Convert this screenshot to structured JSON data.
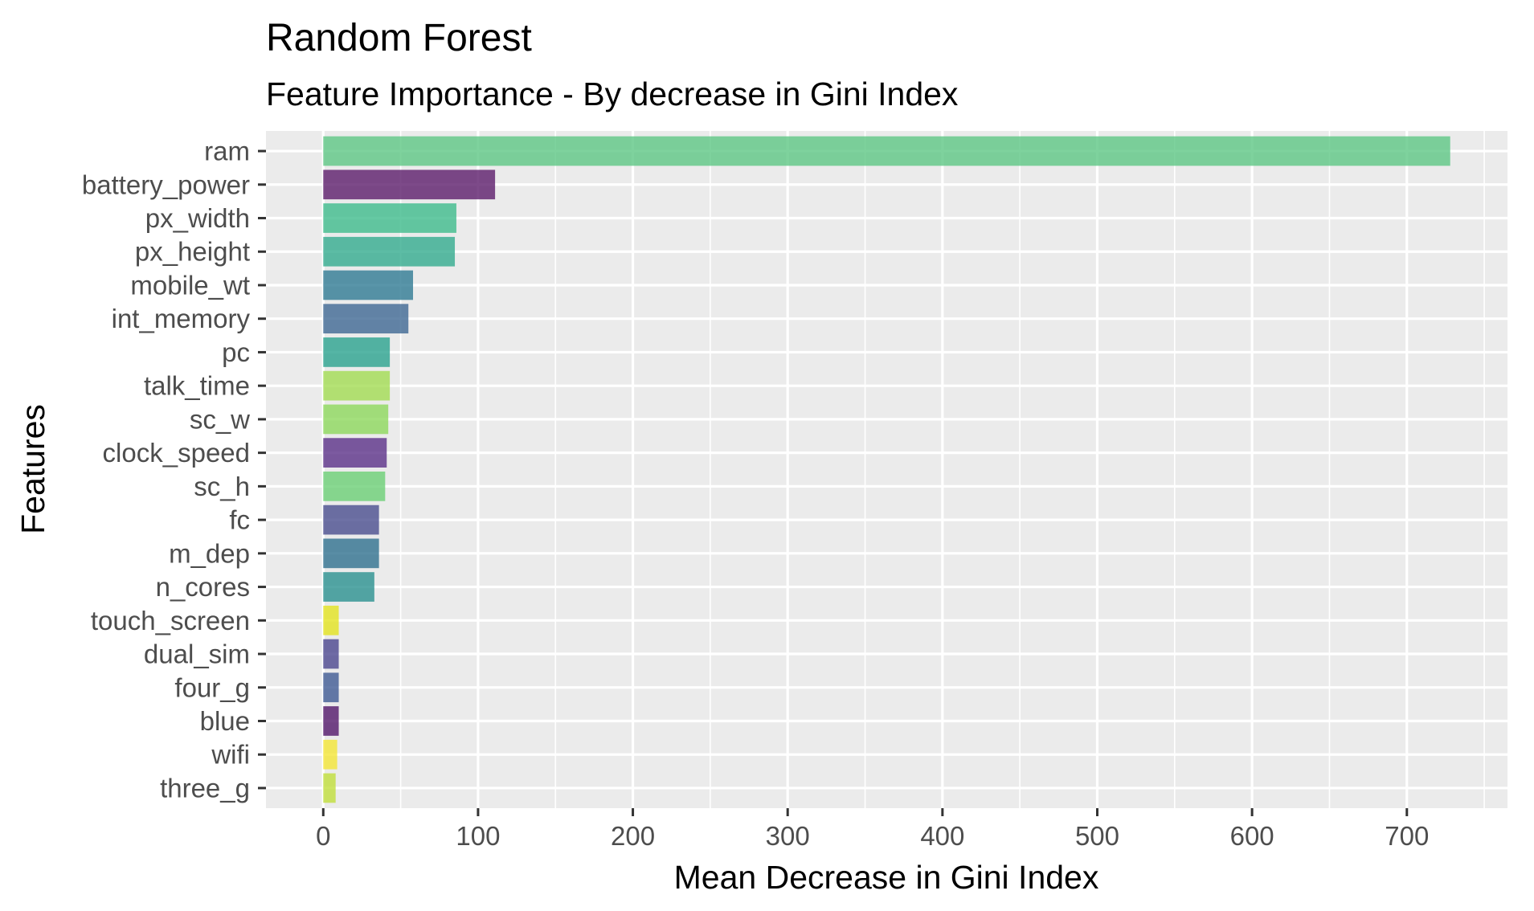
{
  "chart_data": {
    "type": "bar",
    "orientation": "horizontal",
    "title": "Random Forest",
    "subtitle": "Feature Importance - By decrease in Gini Index",
    "xlabel": "Mean Decrease in Gini Index",
    "ylabel": "Features",
    "xlim": [
      -37,
      765
    ],
    "xticks": [
      0,
      100,
      200,
      300,
      400,
      500,
      600,
      700
    ],
    "grid": true,
    "legend": "none",
    "panel_background": "#ebebeb",
    "gridline_color": "#ffffff",
    "bars": [
      {
        "label": "ram",
        "value": 728,
        "color": "#5ec784"
      },
      {
        "label": "battery_power",
        "value": 111,
        "color": "#5c1d6b"
      },
      {
        "label": "px_width",
        "value": 86,
        "color": "#3fbc8c"
      },
      {
        "label": "px_height",
        "value": 85,
        "color": "#33ab8e"
      },
      {
        "label": "mobile_wt",
        "value": 58,
        "color": "#2f7b93"
      },
      {
        "label": "int_memory",
        "value": 55,
        "color": "#3e6894"
      },
      {
        "label": "pc",
        "value": 43,
        "color": "#2aa28f"
      },
      {
        "label": "talk_time",
        "value": 43,
        "color": "#a2dc53"
      },
      {
        "label": "sc_w",
        "value": 42,
        "color": "#8dd85d"
      },
      {
        "label": "clock_speed",
        "value": 41,
        "color": "#5b3188"
      },
      {
        "label": "sc_h",
        "value": 40,
        "color": "#6bcf75"
      },
      {
        "label": "fc",
        "value": 36,
        "color": "#4a4d8e"
      },
      {
        "label": "m_dep",
        "value": 36,
        "color": "#30718f"
      },
      {
        "label": "n_cores",
        "value": 33,
        "color": "#2a9190"
      },
      {
        "label": "touch_screen",
        "value": 10,
        "color": "#e4e41f"
      },
      {
        "label": "dual_sim",
        "value": 10,
        "color": "#4b468e"
      },
      {
        "label": "four_g",
        "value": 10,
        "color": "#3e5a93"
      },
      {
        "label": "blue",
        "value": 10,
        "color": "#53176a"
      },
      {
        "label": "wifi",
        "value": 9,
        "color": "#f4e636"
      },
      {
        "label": "three_g",
        "value": 8,
        "color": "#c1df3b"
      }
    ]
  }
}
